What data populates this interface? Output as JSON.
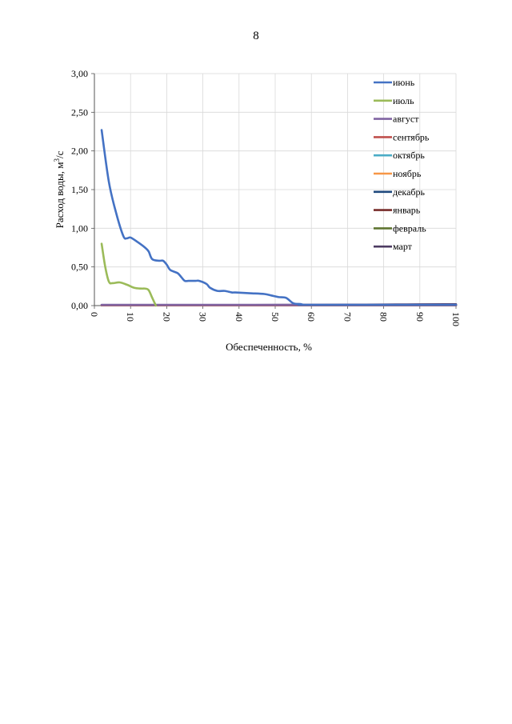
{
  "page": {
    "number": "8"
  },
  "chart_data": {
    "type": "line",
    "xlabel": "Обеспеченность, %",
    "ylabel": "Расход воды, м³/с",
    "ylabel_parts": [
      "Расход воды, м",
      "3",
      "/с"
    ],
    "xlim": [
      0,
      100
    ],
    "ylim": [
      0,
      3
    ],
    "xticks": [
      "0",
      "10",
      "20",
      "30",
      "40",
      "50",
      "60",
      "70",
      "80",
      "90",
      "100"
    ],
    "yticks": [
      "0,00",
      "0,50",
      "1,00",
      "1,50",
      "2,00",
      "2,50",
      "3,00"
    ],
    "grid": true,
    "legend_position": "right",
    "series": [
      {
        "name": "июнь",
        "color": "#4472C4",
        "x": [
          2,
          4,
          6,
          8,
          9,
          10,
          12,
          14,
          15,
          16,
          18,
          19,
          20,
          21,
          23,
          24,
          25,
          26,
          28,
          29,
          31,
          32,
          34,
          36,
          38,
          39,
          43,
          47,
          49,
          51,
          53,
          55,
          57,
          58,
          60,
          100
        ],
        "y": [
          2.27,
          1.6,
          1.2,
          0.9,
          0.87,
          0.88,
          0.82,
          0.75,
          0.7,
          0.6,
          0.58,
          0.58,
          0.53,
          0.46,
          0.42,
          0.37,
          0.32,
          0.32,
          0.32,
          0.32,
          0.28,
          0.23,
          0.19,
          0.19,
          0.17,
          0.17,
          0.16,
          0.15,
          0.13,
          0.11,
          0.1,
          0.03,
          0.02,
          0.01,
          0.01,
          0.01
        ]
      },
      {
        "name": "июль",
        "color": "#9BBB59",
        "x": [
          2,
          3,
          4,
          5,
          7,
          9,
          11,
          13,
          14,
          15,
          16,
          17
        ],
        "y": [
          0.8,
          0.5,
          0.31,
          0.29,
          0.3,
          0.27,
          0.23,
          0.22,
          0.22,
          0.2,
          0.1,
          0.0
        ]
      },
      {
        "name": "август",
        "color": "#8064A2",
        "x": [
          2,
          100
        ],
        "y": [
          0.01,
          0.01
        ]
      },
      {
        "name": "сентябрь",
        "color": "#C0504D",
        "x": [
          2,
          100
        ],
        "y": [
          0.005,
          0.005
        ]
      },
      {
        "name": "октябрь",
        "color": "#4BACC6",
        "x": [
          2,
          100
        ],
        "y": [
          0.005,
          0.005
        ]
      },
      {
        "name": "ноябрь",
        "color": "#F79646",
        "x": [
          2,
          100
        ],
        "y": [
          0.005,
          0.005
        ]
      },
      {
        "name": "декабрь",
        "color": "#1F497D",
        "x": [
          2,
          100
        ],
        "y": [
          0.005,
          0.005
        ]
      },
      {
        "name": "январь",
        "color": "#772C2A",
        "x": [
          2,
          100
        ],
        "y": [
          0.005,
          0.005
        ]
      },
      {
        "name": "февраль",
        "color": "#5F7530",
        "x": [
          2,
          100
        ],
        "y": [
          0.005,
          0.005
        ]
      },
      {
        "name": "март",
        "color": "#4D3B62",
        "x": [
          2,
          10,
          20,
          30,
          40,
          50,
          60,
          70,
          80,
          90,
          97,
          100
        ],
        "y": [
          0.005,
          0.005,
          0.005,
          0.006,
          0.007,
          0.008,
          0.01,
          0.012,
          0.014,
          0.016,
          0.018,
          0.018
        ]
      }
    ]
  }
}
